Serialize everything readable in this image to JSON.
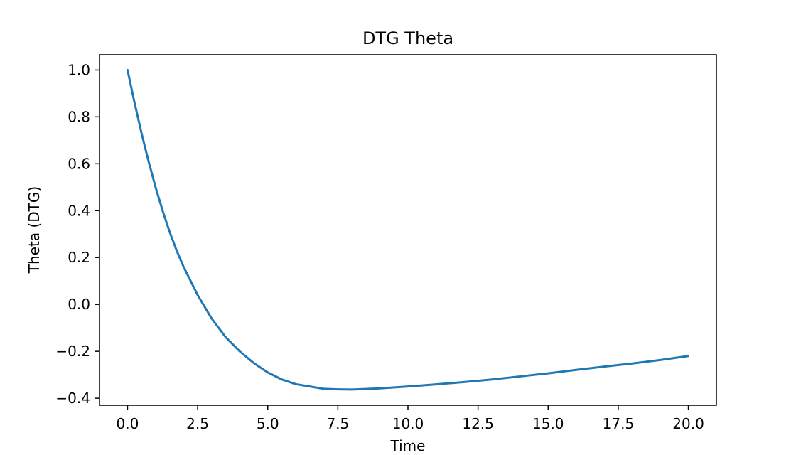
{
  "chart_data": {
    "type": "line",
    "title": "DTG Theta",
    "xlabel": "Time",
    "ylabel": "Theta (DTG)",
    "xlim": [
      -1.0,
      21.0
    ],
    "ylim": [
      -0.43,
      1.065
    ],
    "xticks": [
      0.0,
      2.5,
      5.0,
      7.5,
      10.0,
      12.5,
      15.0,
      17.5,
      20.0
    ],
    "xtick_labels": [
      "0.0",
      "2.5",
      "5.0",
      "7.5",
      "10.0",
      "12.5",
      "15.0",
      "17.5",
      "20.0"
    ],
    "yticks": [
      -0.4,
      -0.2,
      0.0,
      0.2,
      0.4,
      0.6,
      0.8,
      1.0
    ],
    "ytick_labels": [
      "−0.4",
      "−0.2",
      "0.0",
      "0.2",
      "0.4",
      "0.6",
      "0.8",
      "1.0"
    ],
    "grid": false,
    "series": [
      {
        "color": "#1f77b4",
        "x": [
          0.0,
          0.25,
          0.5,
          0.75,
          1.0,
          1.25,
          1.5,
          1.75,
          2.0,
          2.25,
          2.5,
          2.75,
          3.0,
          3.5,
          4.0,
          4.5,
          5.0,
          5.5,
          6.0,
          6.5,
          7.0,
          7.5,
          8.0,
          9.0,
          10.0,
          11.0,
          12.0,
          13.0,
          14.0,
          15.0,
          16.0,
          17.0,
          18.0,
          19.0,
          20.0
        ],
        "y": [
          1.0,
          0.86,
          0.73,
          0.61,
          0.5,
          0.4,
          0.31,
          0.23,
          0.16,
          0.1,
          0.04,
          -0.01,
          -0.06,
          -0.14,
          -0.2,
          -0.25,
          -0.29,
          -0.32,
          -0.34,
          -0.35,
          -0.36,
          -0.362,
          -0.363,
          -0.358,
          -0.35,
          -0.341,
          -0.331,
          -0.32,
          -0.307,
          -0.294,
          -0.279,
          -0.265,
          -0.252,
          -0.237,
          -0.22
        ]
      }
    ]
  }
}
